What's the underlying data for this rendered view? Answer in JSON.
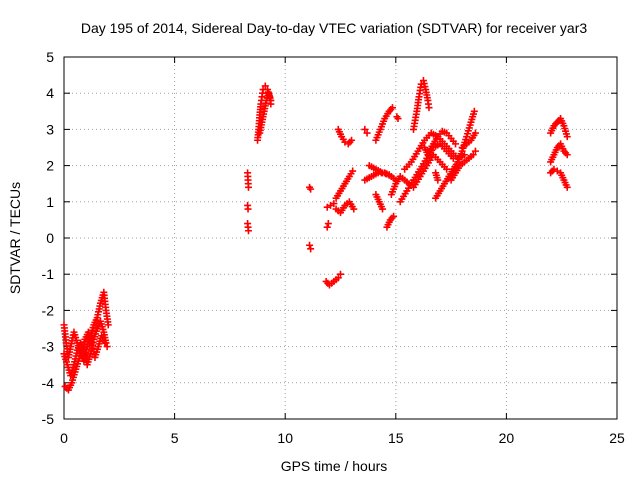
{
  "chart_data": {
    "type": "scatter",
    "title": "Day 195 of 2014, Sidereal Day-to-day VTEC variation (SDTVAR) for receiver yar3",
    "xlabel": "GPS time / hours",
    "ylabel": "SDTVAR / TECUs",
    "xlim": [
      0,
      25
    ],
    "ylim": [
      -5,
      5
    ],
    "xticks": [
      0,
      5,
      10,
      15,
      20,
      25
    ],
    "yticks": [
      -5,
      -4,
      -3,
      -2,
      -1,
      0,
      1,
      2,
      3,
      4,
      5
    ],
    "grid": true,
    "grid_style": "dotted",
    "marker": "+",
    "color": "#ff0000",
    "segments": [
      [
        [
          0.0,
          -2.4
        ],
        [
          0.1,
          -2.9
        ],
        [
          0.2,
          -3.3
        ],
        [
          0.3,
          -3.0
        ],
        [
          0.45,
          -2.6
        ],
        [
          0.6,
          -2.9
        ],
        [
          0.75,
          -3.2
        ],
        [
          0.9,
          -3.4
        ],
        [
          1.05,
          -3.0
        ],
        [
          1.2,
          -2.7
        ],
        [
          1.35,
          -2.4
        ],
        [
          1.5,
          -2.2
        ],
        [
          1.65,
          -1.8
        ],
        [
          1.8,
          -1.5
        ],
        [
          1.9,
          -2.0
        ],
        [
          2.0,
          -2.4
        ]
      ],
      [
        [
          0.0,
          -3.2
        ],
        [
          0.15,
          -3.5
        ],
        [
          0.3,
          -3.8
        ],
        [
          0.45,
          -3.5
        ],
        [
          0.6,
          -3.1
        ],
        [
          0.75,
          -2.9
        ],
        [
          0.9,
          -3.2
        ],
        [
          1.05,
          -3.5
        ],
        [
          1.2,
          -3.2
        ],
        [
          1.35,
          -2.8
        ],
        [
          1.5,
          -2.5
        ],
        [
          1.65,
          -2.3
        ],
        [
          1.8,
          -2.6
        ],
        [
          1.9,
          -2.9
        ]
      ],
      [
        [
          0.05,
          -4.1
        ],
        [
          0.2,
          -4.2
        ],
        [
          0.35,
          -4.0
        ],
        [
          0.5,
          -3.7
        ],
        [
          0.65,
          -3.4
        ],
        [
          0.8,
          -3.1
        ],
        [
          0.95,
          -2.8
        ],
        [
          1.1,
          -2.6
        ],
        [
          1.25,
          -2.9
        ],
        [
          1.4,
          -3.3
        ],
        [
          1.55,
          -3.0
        ],
        [
          1.7,
          -2.7
        ],
        [
          1.85,
          -2.9
        ],
        [
          1.95,
          -3.0
        ]
      ],
      [
        [
          8.3,
          1.8
        ],
        [
          8.32,
          1.6
        ],
        [
          8.34,
          1.4
        ]
      ],
      [
        [
          8.3,
          0.9
        ],
        [
          8.32,
          0.8
        ]
      ],
      [
        [
          8.3,
          0.4
        ],
        [
          8.32,
          0.3
        ],
        [
          8.34,
          0.2
        ]
      ],
      [
        [
          8.75,
          2.7
        ],
        [
          8.8,
          3.0
        ],
        [
          8.85,
          3.4
        ],
        [
          8.9,
          3.7
        ],
        [
          8.95,
          3.9
        ],
        [
          9.0,
          4.1
        ],
        [
          9.1,
          4.2
        ],
        [
          9.2,
          4.1
        ],
        [
          9.3,
          3.9
        ],
        [
          9.35,
          3.7
        ]
      ],
      [
        [
          8.85,
          2.9
        ],
        [
          8.95,
          3.2
        ],
        [
          9.05,
          3.5
        ],
        [
          9.15,
          3.8
        ],
        [
          9.25,
          4.0
        ],
        [
          9.35,
          3.8
        ]
      ],
      [
        [
          11.1,
          1.4
        ],
        [
          11.15,
          1.35
        ]
      ],
      [
        [
          11.1,
          -0.2
        ],
        [
          11.15,
          -0.3
        ]
      ],
      [
        [
          11.85,
          -1.2
        ],
        [
          12.0,
          -1.3
        ],
        [
          12.2,
          -1.2
        ],
        [
          12.4,
          -1.1
        ],
        [
          12.5,
          -1.0
        ]
      ],
      [
        [
          11.9,
          0.3
        ],
        [
          11.95,
          0.4
        ]
      ],
      [
        [
          11.9,
          0.85
        ],
        [
          12.05,
          0.9
        ],
        [
          12.2,
          0.95
        ]
      ],
      [
        [
          12.3,
          1.1
        ],
        [
          12.5,
          1.3
        ],
        [
          12.7,
          1.5
        ],
        [
          12.9,
          1.7
        ],
        [
          13.05,
          1.85
        ]
      ],
      [
        [
          12.3,
          0.8
        ],
        [
          12.5,
          0.7
        ],
        [
          12.7,
          0.9
        ],
        [
          12.9,
          1.0
        ],
        [
          13.1,
          0.8
        ]
      ],
      [
        [
          12.4,
          3.0
        ],
        [
          12.55,
          2.8
        ],
        [
          12.7,
          2.65
        ],
        [
          12.85,
          2.6
        ],
        [
          13.0,
          2.7
        ]
      ],
      [
        [
          13.6,
          3.0
        ],
        [
          13.7,
          2.9
        ]
      ],
      [
        [
          13.6,
          1.6
        ],
        [
          13.9,
          1.7
        ],
        [
          14.2,
          1.8
        ],
        [
          14.5,
          1.8
        ],
        [
          14.8,
          1.7
        ],
        [
          15.0,
          1.6
        ]
      ],
      [
        [
          13.8,
          2.0
        ],
        [
          14.1,
          1.9
        ],
        [
          14.4,
          1.8
        ],
        [
          14.7,
          1.75
        ]
      ],
      [
        [
          14.1,
          1.2
        ],
        [
          14.25,
          1.0
        ],
        [
          14.4,
          0.8
        ]
      ],
      [
        [
          14.1,
          2.7
        ],
        [
          14.3,
          3.0
        ],
        [
          14.5,
          3.3
        ],
        [
          14.7,
          3.5
        ],
        [
          14.85,
          3.6
        ]
      ],
      [
        [
          15.05,
          3.35
        ],
        [
          15.1,
          3.3
        ]
      ],
      [
        [
          14.6,
          0.3
        ],
        [
          14.75,
          0.5
        ],
        [
          14.9,
          0.6
        ]
      ],
      [
        [
          14.8,
          1.2
        ],
        [
          15.0,
          1.5
        ],
        [
          15.2,
          1.7
        ],
        [
          15.4,
          1.6
        ],
        [
          15.6,
          1.5
        ]
      ],
      [
        [
          15.2,
          1.0
        ],
        [
          15.5,
          1.3
        ],
        [
          15.8,
          1.6
        ],
        [
          16.1,
          1.9
        ],
        [
          16.4,
          2.2
        ],
        [
          16.7,
          2.5
        ],
        [
          17.0,
          2.6
        ],
        [
          17.3,
          2.4
        ],
        [
          17.6,
          2.2
        ]
      ],
      [
        [
          15.4,
          1.9
        ],
        [
          15.7,
          2.1
        ],
        [
          16.0,
          2.4
        ],
        [
          16.3,
          2.7
        ],
        [
          16.6,
          2.9
        ],
        [
          16.9,
          2.8
        ],
        [
          17.2,
          2.6
        ],
        [
          17.5,
          2.4
        ],
        [
          17.8,
          2.2
        ],
        [
          18.1,
          2.3
        ]
      ],
      [
        [
          15.8,
          1.4
        ],
        [
          16.1,
          1.7
        ],
        [
          16.4,
          2.0
        ],
        [
          16.7,
          2.3
        ],
        [
          17.0,
          2.1
        ],
        [
          17.3,
          1.9
        ]
      ],
      [
        [
          15.8,
          3.0
        ],
        [
          15.95,
          3.5
        ],
        [
          16.05,
          3.9
        ],
        [
          16.15,
          4.25
        ],
        [
          16.25,
          4.35
        ],
        [
          16.35,
          4.1
        ],
        [
          16.45,
          3.8
        ],
        [
          16.5,
          3.6
        ]
      ],
      [
        [
          16.3,
          2.5
        ],
        [
          16.45,
          2.3
        ]
      ],
      [
        [
          16.8,
          1.8
        ],
        [
          16.9,
          1.6
        ]
      ],
      [
        [
          16.5,
          2.4
        ],
        [
          16.7,
          2.6
        ],
        [
          16.9,
          2.8
        ],
        [
          17.1,
          2.95
        ],
        [
          17.3,
          2.9
        ],
        [
          17.5,
          2.75
        ],
        [
          17.7,
          2.6
        ]
      ],
      [
        [
          16.8,
          1.1
        ],
        [
          17.0,
          1.3
        ],
        [
          17.2,
          1.5
        ],
        [
          17.4,
          1.7
        ],
        [
          17.6,
          1.9
        ],
        [
          17.8,
          2.1
        ],
        [
          18.0,
          2.4
        ],
        [
          18.2,
          2.8
        ],
        [
          18.4,
          3.2
        ],
        [
          18.55,
          3.5
        ]
      ],
      [
        [
          17.5,
          1.6
        ],
        [
          17.7,
          1.8
        ],
        [
          17.9,
          2.0
        ],
        [
          18.1,
          2.1
        ],
        [
          18.3,
          2.2
        ],
        [
          18.5,
          2.3
        ],
        [
          18.6,
          2.4
        ]
      ],
      [
        [
          18.0,
          2.5
        ],
        [
          18.2,
          2.6
        ],
        [
          18.4,
          2.7
        ],
        [
          18.6,
          2.9
        ]
      ],
      [
        [
          22.0,
          2.9
        ],
        [
          22.15,
          3.1
        ],
        [
          22.3,
          3.2
        ],
        [
          22.45,
          3.3
        ],
        [
          22.6,
          3.1
        ],
        [
          22.75,
          2.8
        ]
      ],
      [
        [
          22.0,
          2.1
        ],
        [
          22.15,
          2.3
        ],
        [
          22.3,
          2.5
        ],
        [
          22.45,
          2.6
        ],
        [
          22.6,
          2.4
        ],
        [
          22.75,
          2.3
        ]
      ],
      [
        [
          22.0,
          1.8
        ],
        [
          22.15,
          1.9
        ],
        [
          22.3,
          1.85
        ],
        [
          22.45,
          1.8
        ],
        [
          22.6,
          1.6
        ],
        [
          22.75,
          1.4
        ]
      ]
    ]
  }
}
